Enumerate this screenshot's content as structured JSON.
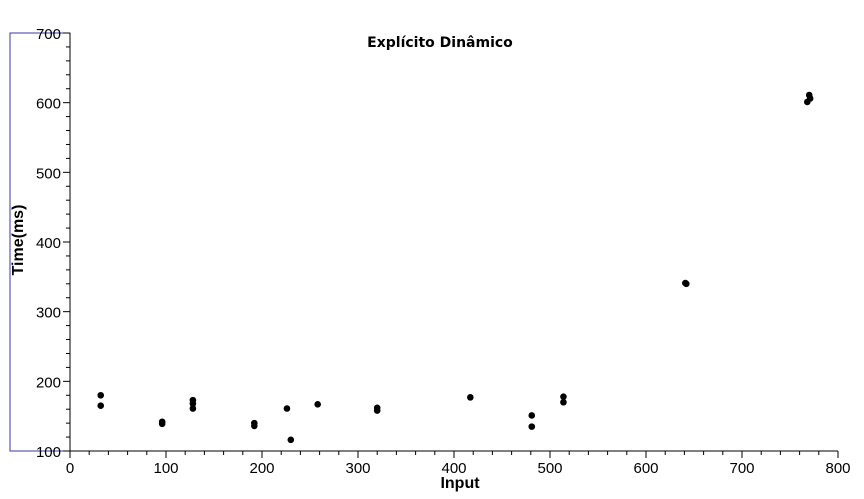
{
  "chart_data": {
    "type": "scatter",
    "title": "Explícito Dinâmico",
    "xlabel": "Input",
    "ylabel": "Time(ms)",
    "xlim": [
      0,
      800
    ],
    "ylim": [
      100,
      700
    ],
    "xticks": [
      0,
      100,
      200,
      300,
      400,
      500,
      600,
      700,
      800
    ],
    "yticks": [
      100,
      200,
      300,
      400,
      500,
      600,
      700
    ],
    "grid": false,
    "series": [
      {
        "color": "#000000",
        "points": [
          {
            "x": 32,
            "y": 180
          },
          {
            "x": 32,
            "y": 165
          },
          {
            "x": 96,
            "y": 142
          },
          {
            "x": 96,
            "y": 139
          },
          {
            "x": 128,
            "y": 173
          },
          {
            "x": 128,
            "y": 168
          },
          {
            "x": 128,
            "y": 161
          },
          {
            "x": 192,
            "y": 140
          },
          {
            "x": 192,
            "y": 136
          },
          {
            "x": 226,
            "y": 161
          },
          {
            "x": 230,
            "y": 116
          },
          {
            "x": 258,
            "y": 167
          },
          {
            "x": 320,
            "y": 162
          },
          {
            "x": 320,
            "y": 158
          },
          {
            "x": 417,
            "y": 177
          },
          {
            "x": 481,
            "y": 151
          },
          {
            "x": 481,
            "y": 135
          },
          {
            "x": 514,
            "y": 178
          },
          {
            "x": 514,
            "y": 170
          },
          {
            "x": 641,
            "y": 341
          },
          {
            "x": 642,
            "y": 340
          },
          {
            "x": 770,
            "y": 611
          },
          {
            "x": 771,
            "y": 606
          },
          {
            "x": 768,
            "y": 601
          }
        ]
      }
    ]
  }
}
